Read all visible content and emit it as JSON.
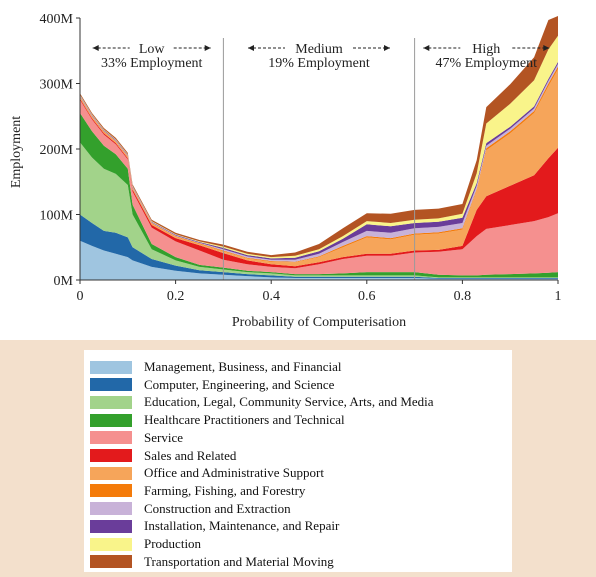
{
  "chart_data": {
    "type": "area",
    "stacked": true,
    "xlabel": "Probability of Computerisation",
    "ylabel": "Employment",
    "xlim": [
      0,
      1
    ],
    "ylim": [
      0,
      400
    ],
    "x_ticks": [
      "0",
      "0.2",
      "0.4",
      "0.6",
      "0.8",
      "1"
    ],
    "x_tick_values": [
      0,
      0.2,
      0.4,
      0.6,
      0.8,
      1
    ],
    "y_ticks": [
      "0M",
      "100M",
      "200M",
      "300M",
      "400M"
    ],
    "y_tick_values": [
      0,
      100,
      200,
      300,
      400
    ],
    "thresholds": [
      0.3,
      0.7
    ],
    "regions": [
      {
        "name": "Low",
        "share": "33% Employment",
        "x_from": 0,
        "x_to": 0.3
      },
      {
        "name": "Medium",
        "share": "19% Employment",
        "x_from": 0.3,
        "x_to": 0.7
      },
      {
        "name": "High",
        "share": "47% Employment",
        "x_from": 0.7,
        "x_to": 1
      }
    ],
    "x": [
      0,
      0.025,
      0.05,
      0.075,
      0.1,
      0.11,
      0.15,
      0.2,
      0.25,
      0.3,
      0.35,
      0.4,
      0.45,
      0.5,
      0.55,
      0.6,
      0.65,
      0.7,
      0.75,
      0.8,
      0.83,
      0.85,
      0.9,
      0.95,
      0.98,
      1
    ],
    "series": [
      {
        "name": "Management, Business, and Financial",
        "color": "#9fc5e0",
        "values": [
          60,
          52,
          45,
          40,
          35,
          30,
          20,
          14,
          10,
          8,
          6,
          4,
          3,
          3,
          3,
          3,
          3,
          3,
          2,
          2,
          2,
          2,
          2,
          2,
          2,
          2
        ]
      },
      {
        "name": "Computer, Engineering, and Science",
        "color": "#2268a8",
        "values": [
          40,
          35,
          30,
          32,
          30,
          20,
          12,
          8,
          5,
          4,
          3,
          3,
          2,
          2,
          2,
          2,
          2,
          2,
          1,
          1,
          1,
          1,
          1,
          1,
          1,
          1
        ]
      },
      {
        "name": "Education, Legal, Community Service, Arts, and Media",
        "color": "#a2d38a",
        "values": [
          110,
          100,
          95,
          90,
          80,
          50,
          15,
          8,
          5,
          4,
          3,
          3,
          2,
          2,
          2,
          2,
          2,
          2,
          1,
          1,
          1,
          1,
          1,
          1,
          1,
          1
        ]
      },
      {
        "name": "Healthcare Practitioners and Technical",
        "color": "#33a02c",
        "values": [
          45,
          40,
          35,
          30,
          25,
          15,
          8,
          5,
          3,
          3,
          2,
          2,
          2,
          2,
          3,
          5,
          5,
          5,
          4,
          3,
          3,
          4,
          5,
          6,
          7,
          8
        ]
      },
      {
        "name": "Service",
        "color": "#f5908f",
        "values": [
          20,
          18,
          17,
          15,
          14,
          20,
          25,
          24,
          22,
          12,
          10,
          8,
          9,
          15,
          22,
          25,
          25,
          30,
          35,
          40,
          60,
          70,
          75,
          80,
          85,
          90
        ]
      },
      {
        "name": "Sales and Related",
        "color": "#e31a1c",
        "values": [
          2,
          2,
          2,
          2,
          2,
          3,
          4,
          5,
          8,
          10,
          6,
          4,
          3,
          3,
          3,
          3,
          3,
          3,
          3,
          5,
          40,
          50,
          60,
          70,
          90,
          100
        ]
      },
      {
        "name": "Office and Administrative Support",
        "color": "#f6a55a",
        "values": [
          2,
          2,
          2,
          2,
          2,
          2,
          2,
          2,
          2,
          3,
          3,
          4,
          6,
          8,
          15,
          25,
          22,
          24,
          25,
          25,
          30,
          70,
          80,
          95,
          110,
          120
        ]
      },
      {
        "name": "Farming, Fishing, and Forestry",
        "color": "#f47b0a",
        "values": [
          1,
          1,
          1,
          1,
          1,
          1,
          1,
          1,
          1,
          1,
          1,
          1,
          1,
          1,
          2,
          2,
          2,
          2,
          2,
          2,
          2,
          3,
          3,
          3,
          4,
          4
        ]
      },
      {
        "name": "Construction and Extraction",
        "color": "#c8b2d8",
        "values": [
          1,
          1,
          1,
          1,
          1,
          1,
          1,
          1,
          1,
          2,
          2,
          2,
          3,
          4,
          6,
          8,
          8,
          8,
          8,
          8,
          5,
          4,
          4,
          4,
          4,
          4
        ]
      },
      {
        "name": "Installation, Maintenance, and Repair",
        "color": "#6a3d9a",
        "values": [
          1,
          1,
          1,
          1,
          1,
          1,
          1,
          1,
          1,
          2,
          2,
          2,
          3,
          4,
          5,
          10,
          10,
          8,
          8,
          8,
          4,
          4,
          3,
          3,
          3,
          3
        ]
      },
      {
        "name": "Production",
        "color": "#f9f48a",
        "values": [
          1,
          1,
          1,
          1,
          1,
          1,
          1,
          1,
          1,
          2,
          2,
          2,
          3,
          3,
          4,
          5,
          5,
          5,
          5,
          6,
          15,
          30,
          35,
          40,
          45,
          40
        ]
      },
      {
        "name": "Transportation and Material Moving",
        "color": "#b35423",
        "values": [
          2,
          2,
          2,
          2,
          2,
          2,
          2,
          2,
          2,
          3,
          3,
          3,
          5,
          8,
          12,
          12,
          14,
          15,
          15,
          15,
          20,
          25,
          30,
          35,
          45,
          30
        ]
      }
    ]
  }
}
